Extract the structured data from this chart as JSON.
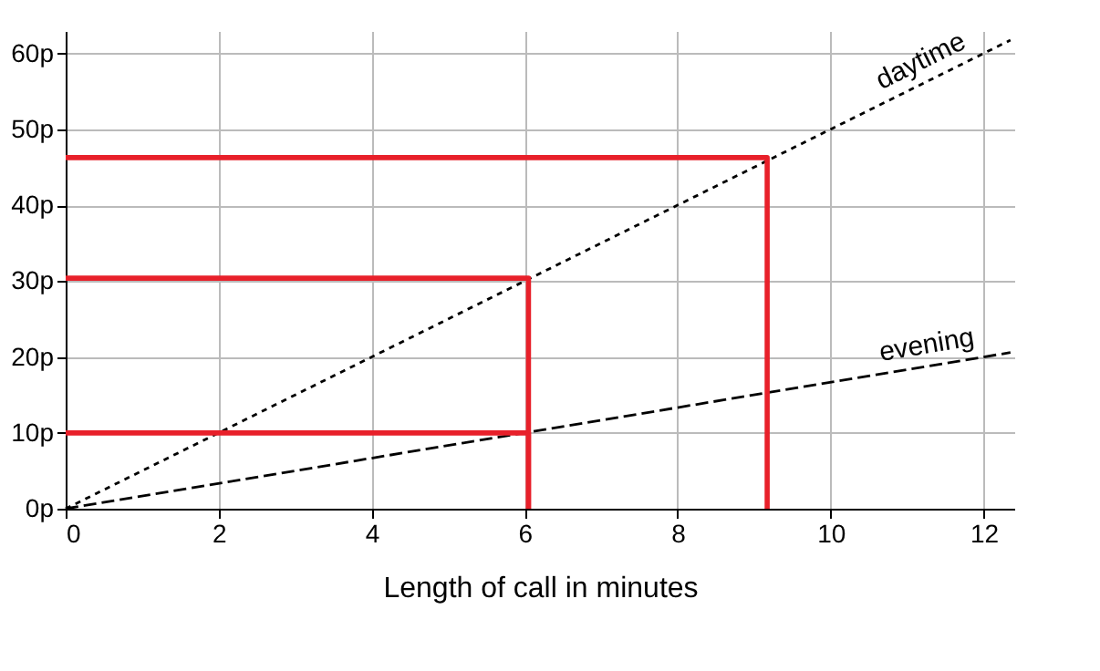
{
  "chart_data": {
    "type": "line",
    "xlabel": "Length of call in minutes",
    "xlim": [
      0,
      12.4
    ],
    "ylim": [
      0,
      63
    ],
    "xticks": [
      0,
      2,
      4,
      6,
      8,
      10,
      12
    ],
    "yticks": [
      {
        "value": 0,
        "label": "0p"
      },
      {
        "value": 10,
        "label": "10p"
      },
      {
        "value": 20,
        "label": "20p"
      },
      {
        "value": 30,
        "label": "30p"
      },
      {
        "value": 40,
        "label": "40p"
      },
      {
        "value": 50,
        "label": "50p"
      },
      {
        "value": 60,
        "label": "60p"
      }
    ],
    "grid": true,
    "marker": "none",
    "series": [
      {
        "name": "daytime",
        "color": "#000000",
        "line_style": "dotted",
        "x": [
          0,
          12.35
        ],
        "values": [
          0,
          61.8
        ]
      },
      {
        "name": "evening",
        "color": "#000000",
        "line_style": "dashed",
        "x": [
          0,
          12.35
        ],
        "values": [
          0,
          20.6
        ]
      },
      {
        "color": "#e8202a",
        "line_style": "solid",
        "x": [
          0,
          6.05,
          6.05
        ],
        "values": [
          10,
          10,
          0
        ]
      },
      {
        "color": "#e8202a",
        "line_style": "solid",
        "x": [
          0,
          6.05,
          6.05
        ],
        "values": [
          30.4,
          30.4,
          0
        ]
      },
      {
        "color": "#e8202a",
        "line_style": "solid",
        "x": [
          0,
          9.17,
          9.17
        ],
        "values": [
          46.3,
          46.3,
          0
        ]
      }
    ]
  }
}
